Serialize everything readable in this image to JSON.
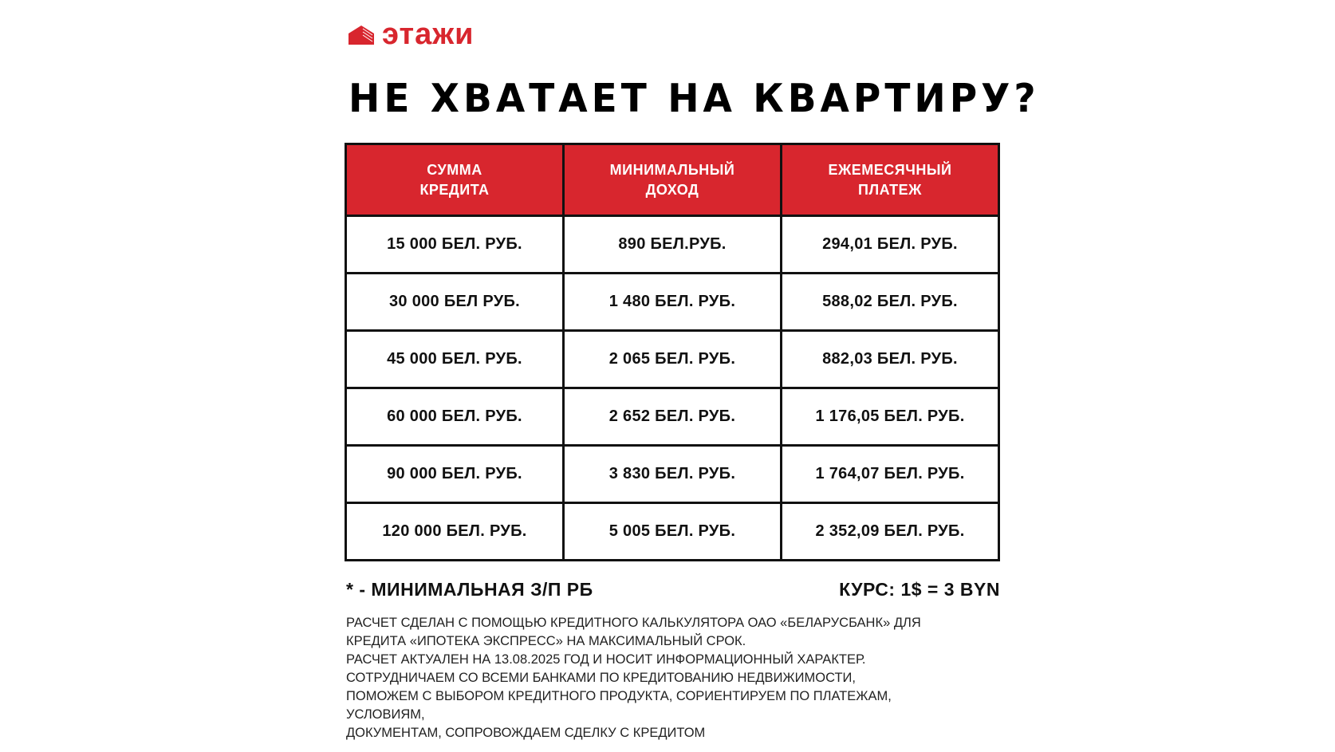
{
  "brand": {
    "name": "этажи",
    "icon": "building-logo-icon",
    "color": "#d8262e"
  },
  "title": "НЕ ХВАТАЕТ НА КВАРТИРУ?",
  "table": {
    "headers": [
      [
        "СУММА",
        "КРЕДИТА"
      ],
      [
        "МИНИМАЛЬНЫЙ",
        "ДОХОД"
      ],
      [
        "ЕЖЕМЕСЯЧНЫЙ",
        "ПЛАТЕЖ"
      ]
    ],
    "rows": [
      [
        "15 000 БЕЛ. РУБ.",
        "890 БЕЛ.РУБ.",
        "294,01 БЕЛ. РУБ."
      ],
      [
        "30 000 БЕЛ РУБ.",
        "1 480 БЕЛ. РУБ.",
        "588,02 БЕЛ. РУБ."
      ],
      [
        "45 000 БЕЛ. РУБ.",
        "2 065 БЕЛ. РУБ.",
        "882,03 БЕЛ. РУБ."
      ],
      [
        "60 000 БЕЛ. РУБ.",
        "2 652 БЕЛ. РУБ.",
        "1 176,05 БЕЛ. РУБ."
      ],
      [
        "90 000 БЕЛ. РУБ.",
        "3 830 БЕЛ. РУБ.",
        "1 764,07 БЕЛ. РУБ."
      ],
      [
        "120 000 БЕЛ. РУБ.",
        "5 005 БЕЛ. РУБ.",
        "2 352,09 БЕЛ. РУБ."
      ]
    ]
  },
  "footnote": "* - МИНИМАЛЬНАЯ З/П РБ",
  "rate": "КУРС: 1$ = 3 BYN",
  "disclaimer": [
    "РАСЧЕТ СДЕЛАН С ПОМОЩЬЮ КРЕДИТНОГО КАЛЬКУЛЯТОРА ОАО «БЕЛАРУСБАНК» ДЛЯ",
    "КРЕДИТА «ИПОТЕКА ЭКСПРЕСС» НА МАКСИМАЛЬНЫЙ СРОК.",
    "РАСЧЕТ АКТУАЛЕН НА 13.08.2025 ГОД И НОСИТ ИНФОРМАЦИОННЫЙ ХАРАКТЕР.",
    "СОТРУДНИЧАЕМ СО ВСЕМИ БАНКАМИ ПО КРЕДИТОВАНИЮ НЕДВИЖИМОСТИ,",
    "ПОМОЖЕМ С ВЫБОРОМ КРЕДИТНОГО ПРОДУКТА, СОРИЕНТИРУЕМ ПО ПЛАТЕЖАМ,",
    "УСЛОВИЯМ,",
    "ДОКУМЕНТАМ, СОПРОВОЖДАЕМ СДЕЛКУ С КРЕДИТОМ"
  ]
}
